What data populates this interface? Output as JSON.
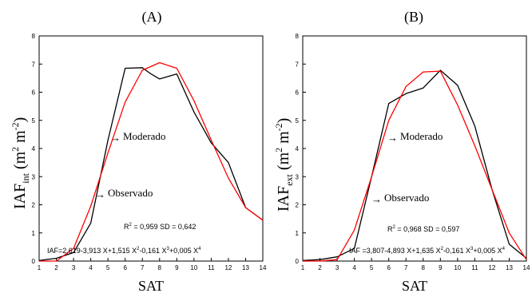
{
  "chart_data": [
    {
      "type": "line",
      "title": "(A)",
      "xlabel": "SAT",
      "ylabel": {
        "main": "IAF",
        "sub": "int",
        "unit_pre": " (m",
        "sup1": "2",
        "unit_mid": " m",
        "sup2": "-2",
        "unit_post": ")"
      },
      "xlim": [
        1,
        14
      ],
      "ylim": [
        0,
        8
      ],
      "xticks": [
        "1",
        "2",
        "3",
        "4",
        "5",
        "6",
        "7",
        "8",
        "9",
        "10",
        "11",
        "12",
        "13",
        "14"
      ],
      "yticks": [
        "0",
        "1",
        "2",
        "3",
        "4",
        "5",
        "6",
        "7",
        "8"
      ],
      "grid": false,
      "series": [
        {
          "color": "#000000",
          "x": [
            1,
            2,
            3,
            4,
            5,
            6,
            7,
            7.5,
            8,
            9,
            10,
            11,
            12,
            13,
            14
          ],
          "y": [
            0.02,
            0.1,
            0.3,
            1.35,
            4.3,
            6.85,
            6.87,
            6.65,
            6.47,
            6.65,
            5.3,
            4.2,
            3.5,
            1.9,
            1.45
          ]
        },
        {
          "color": "#ff0000",
          "x": [
            1,
            2,
            3,
            4,
            5,
            6,
            7,
            8,
            9,
            10,
            11,
            12,
            13,
            14
          ],
          "y": [
            0.0,
            0.0,
            0.45,
            1.95,
            3.85,
            5.65,
            6.78,
            7.05,
            6.85,
            5.7,
            4.3,
            2.95,
            1.9,
            1.45
          ]
        }
      ],
      "annotations": {
        "moderado": "Moderado",
        "observado": "Observado",
        "arrow": "→",
        "stats": {
          "r_pre": "R",
          "r_sup": "2",
          "r_post": " = 0,959 SD = 0,642"
        },
        "equation": {
          "p1": "IAF=2,619-3,913 X+1,515 X",
          "s1": "2",
          "p2": "-0,161 X",
          "s2": "3",
          "p3": "+0,005 X",
          "s3": "4"
        }
      }
    },
    {
      "type": "line",
      "title": "(B)",
      "xlabel": "SAT",
      "ylabel": {
        "main": "IAF",
        "sub": "ext",
        "unit_pre": " (m",
        "sup1": "2",
        "unit_mid": " m",
        "sup2": "-2",
        "unit_post": ")"
      },
      "xlim": [
        1,
        14
      ],
      "ylim": [
        0,
        8
      ],
      "xticks": [
        "1",
        "2",
        "3",
        "4",
        "5",
        "6",
        "7",
        "8",
        "9",
        "10",
        "11",
        "12",
        "13",
        "14"
      ],
      "yticks": [
        "0",
        "1",
        "2",
        "3",
        "4",
        "5",
        "6",
        "7",
        "8"
      ],
      "grid": false,
      "series": [
        {
          "color": "#000000",
          "x": [
            1,
            2,
            3,
            4,
            5,
            6,
            7,
            8,
            9,
            10,
            11,
            12,
            13,
            14
          ],
          "y": [
            0.02,
            0.05,
            0.15,
            0.45,
            3.0,
            5.6,
            5.95,
            6.15,
            6.78,
            6.25,
            4.8,
            2.55,
            0.6,
            0.1
          ]
        },
        {
          "color": "#ff0000",
          "x": [
            1,
            2,
            3,
            4,
            5,
            6,
            7,
            8,
            9,
            10,
            11,
            12,
            13,
            14
          ],
          "y": [
            0.0,
            0.0,
            0.05,
            1.1,
            3.0,
            5.0,
            6.2,
            6.72,
            6.75,
            5.55,
            4.1,
            2.55,
            1.0,
            0.05
          ]
        }
      ],
      "annotations": {
        "moderado": "Moderado",
        "observado": "Observado",
        "arrow": "→",
        "stats": {
          "r_pre": "R",
          "r_sup": "2",
          "r_post": " = 0,968 SD = 0,597"
        },
        "equation": {
          "p1": "IAF =3,807-4,893 X+1,635 X",
          "s1": "2",
          "p2": "-0,161 X",
          "s2": "3",
          "p3": "+0,005 X",
          "s3": "4"
        }
      }
    }
  ]
}
